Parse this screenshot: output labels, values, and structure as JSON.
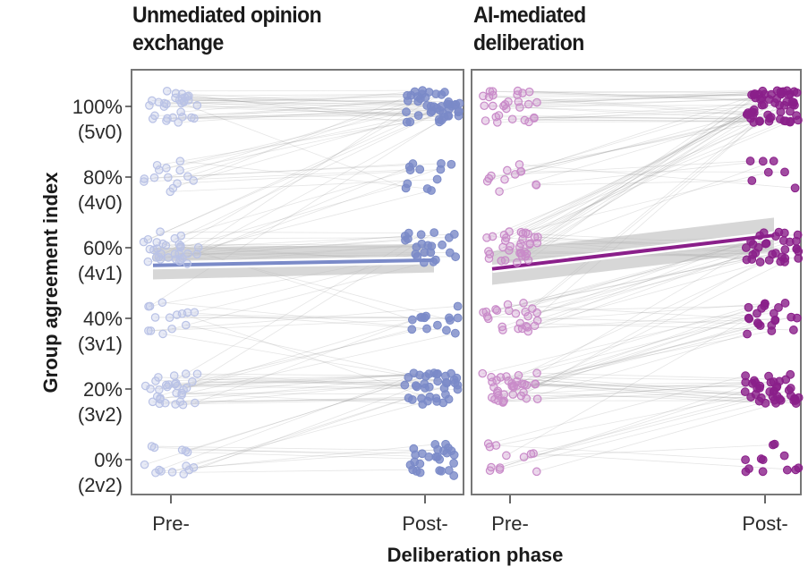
{
  "chart_data": {
    "type": "scatter",
    "ylabel": "Group agreement index",
    "xlabel": "Deliberation phase",
    "x_categories": [
      "Pre-",
      "Post-"
    ],
    "y_ticks": [
      {
        "value": 100,
        "label": "100%",
        "sublabel": "(5v0)"
      },
      {
        "value": 80,
        "label": "80%",
        "sublabel": "(4v0)"
      },
      {
        "value": 60,
        "label": "60%",
        "sublabel": "(4v1)"
      },
      {
        "value": 40,
        "label": "40%",
        "sublabel": "(3v1)"
      },
      {
        "value": 20,
        "label": "20%",
        "sublabel": "(3v2)"
      },
      {
        "value": 0,
        "label": "0%",
        "sublabel": "(2v2)"
      }
    ],
    "ylim": [
      -10,
      112
    ],
    "grid": false,
    "panels": [
      {
        "title": "Unmediated opinion exchange",
        "color": "#7a8ac8",
        "pre_color": "#b9c2e6",
        "regression": {
          "pre": 55,
          "post": 56.5,
          "ci_pre": [
            51,
            60
          ],
          "ci_post": [
            53,
            61
          ]
        },
        "group_counts": {
          "pre": {
            "100": 30,
            "80": 14,
            "60": 30,
            "40": 14,
            "20": 30,
            "0": 14
          },
          "post": {
            "100": 44,
            "80": 12,
            "60": 22,
            "40": 14,
            "20": 36,
            "0": 26
          }
        }
      },
      {
        "title": "AI-mediated deliberation",
        "color": "#8a1f8a",
        "pre_color": "#c98bc9",
        "regression": {
          "pre": 54,
          "post": 63.5,
          "ci_pre": [
            49.5,
            59
          ],
          "ci_post": [
            59,
            68.5
          ]
        },
        "group_counts": {
          "pre": {
            "100": 28,
            "80": 12,
            "60": 34,
            "40": 24,
            "20": 36,
            "0": 12
          },
          "post": {
            "100": 56,
            "80": 7,
            "60": 32,
            "40": 22,
            "20": 40,
            "0": 12
          }
        }
      }
    ]
  }
}
